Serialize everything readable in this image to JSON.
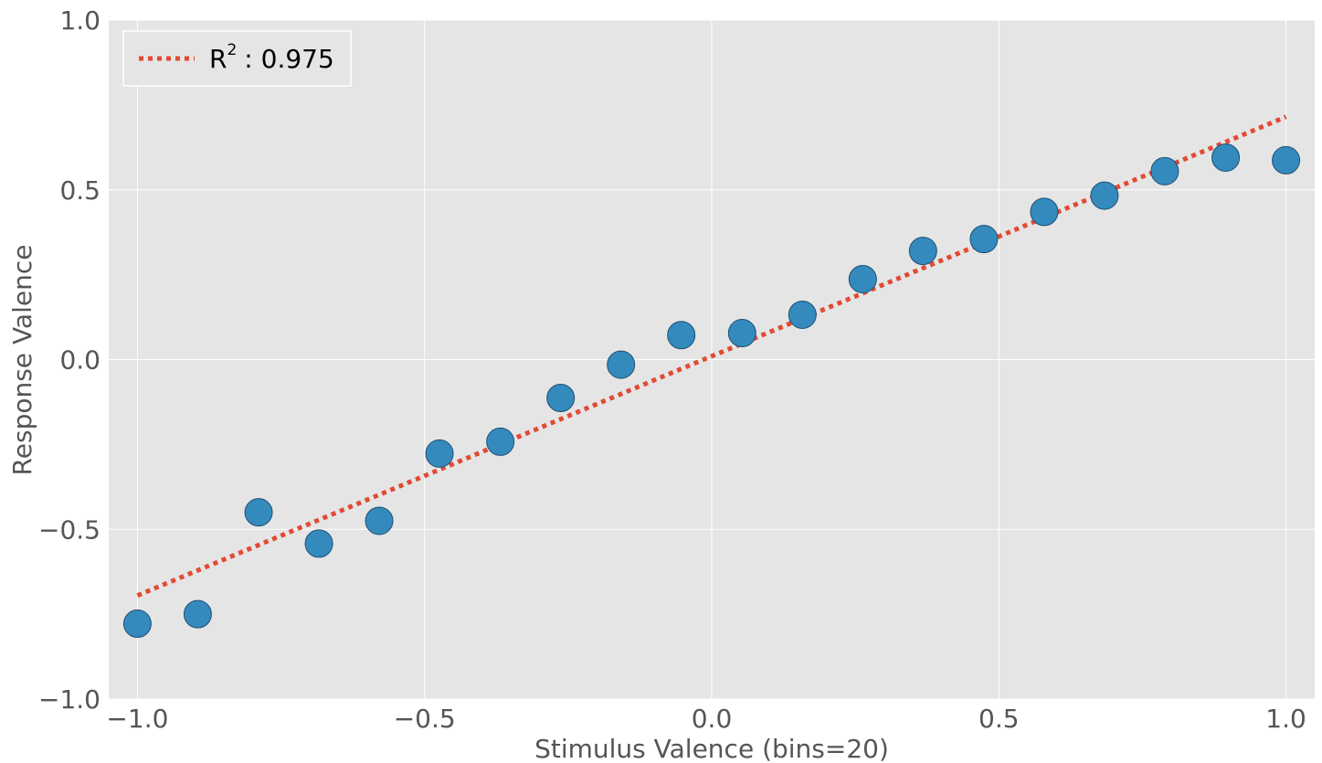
{
  "chart_data": {
    "type": "scatter",
    "xlabel": "Stimulus Valence (bins=20)",
    "ylabel": "Response Valence",
    "xlim": [
      -1.05,
      1.05
    ],
    "ylim": [
      -1.0,
      1.0
    ],
    "xticks": [
      -1.0,
      -0.5,
      0.0,
      0.5,
      1.0
    ],
    "yticks": [
      -1.0,
      -0.5,
      0.0,
      0.5,
      1.0
    ],
    "xtick_labels": [
      "−1.0",
      "−0.5",
      "0.0",
      "0.5",
      "1.0"
    ],
    "ytick_labels": [
      "−1.0",
      "−0.5",
      "0.0",
      "0.5",
      "1.0"
    ],
    "grid": true,
    "legend_position": "top-left",
    "points": {
      "color": "#348abd",
      "x": [
        -1.0,
        -0.895,
        -0.789,
        -0.684,
        -0.579,
        -0.474,
        -0.368,
        -0.263,
        -0.158,
        -0.053,
        0.053,
        0.158,
        0.263,
        0.368,
        0.474,
        0.579,
        0.684,
        0.789,
        0.895,
        1.0
      ],
      "y": [
        -0.778,
        -0.75,
        -0.45,
        -0.542,
        -0.475,
        -0.277,
        -0.242,
        -0.113,
        -0.015,
        0.072,
        0.078,
        0.132,
        0.237,
        0.32,
        0.355,
        0.435,
        0.483,
        0.555,
        0.595,
        0.587
      ]
    },
    "fit_line": {
      "label": "R",
      "label_sup": "2",
      "label_value": ": 0.975",
      "color": "#e24a33",
      "style": "dotted",
      "x": [
        -1.0,
        1.0
      ],
      "y": [
        -0.695,
        0.715
      ]
    }
  }
}
